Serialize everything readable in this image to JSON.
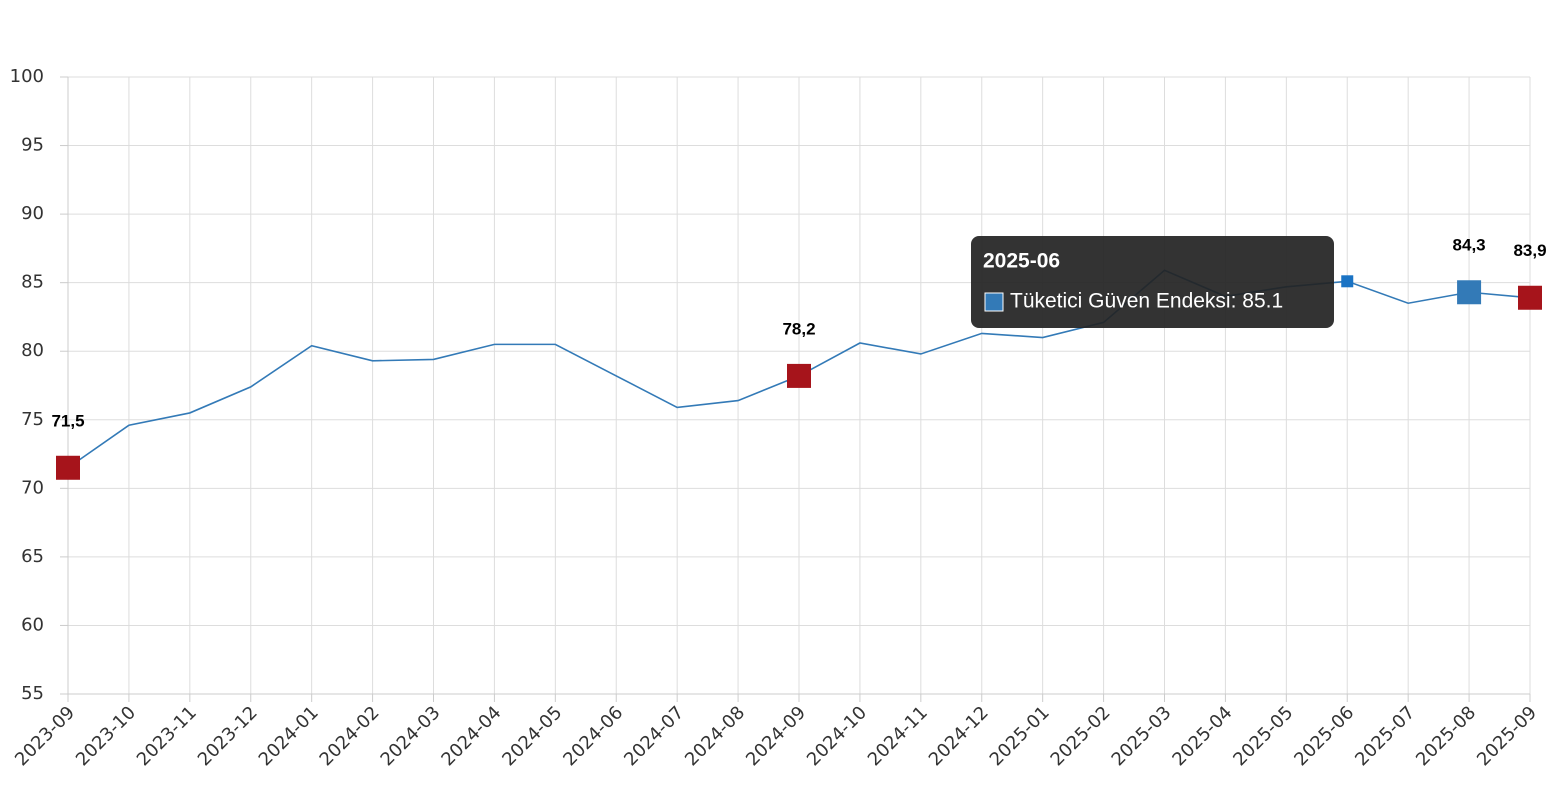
{
  "chart_data": {
    "type": "line",
    "categories": [
      "2023-09",
      "2023-10",
      "2023-11",
      "2023-12",
      "2024-01",
      "2024-02",
      "2024-03",
      "2024-04",
      "2024-05",
      "2024-06",
      "2024-07",
      "2024-08",
      "2024-09",
      "2024-10",
      "2024-11",
      "2024-12",
      "2025-01",
      "2025-02",
      "2025-03",
      "2025-04",
      "2025-05",
      "2025-06",
      "2025-07",
      "2025-08",
      "2025-09"
    ],
    "series": [
      {
        "name": "Tüketici Güven Endeksi",
        "color": "#337ab7",
        "values": [
          71.5,
          74.6,
          75.5,
          77.4,
          80.4,
          79.3,
          79.4,
          80.5,
          80.5,
          78.2,
          75.9,
          76.4,
          78.2,
          80.6,
          79.8,
          81.3,
          81.0,
          82.1,
          85.9,
          84.0,
          84.7,
          85.1,
          83.5,
          84.3,
          83.9
        ],
        "value_labels": [
          "71,5",
          null,
          null,
          null,
          null,
          null,
          null,
          null,
          null,
          null,
          null,
          null,
          "78,2",
          null,
          null,
          null,
          null,
          null,
          null,
          null,
          null,
          null,
          null,
          "84,3",
          "83,9"
        ],
        "point_colors": [
          "#a6141b",
          null,
          null,
          null,
          null,
          null,
          null,
          null,
          null,
          null,
          null,
          null,
          "#a6141b",
          null,
          null,
          null,
          null,
          null,
          null,
          null,
          null,
          null,
          null,
          "#337ab7",
          "#a6141b"
        ]
      }
    ],
    "ylim": [
      55,
      100
    ],
    "yticks": [
      55,
      60,
      65,
      70,
      75,
      80,
      85,
      90,
      95,
      100
    ],
    "grid": true,
    "tooltip": {
      "title": "2025-06",
      "label": "Tüketici Güven Endeksi: 85.1",
      "color": "#1a73c4"
    }
  }
}
